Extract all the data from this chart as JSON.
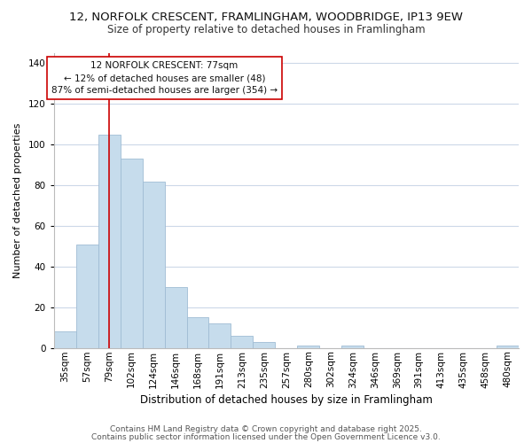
{
  "title": "12, NORFOLK CRESCENT, FRAMLINGHAM, WOODBRIDGE, IP13 9EW",
  "subtitle": "Size of property relative to detached houses in Framlingham",
  "xlabel": "Distribution of detached houses by size in Framlingham",
  "ylabel": "Number of detached properties",
  "bar_color": "#c6dcec",
  "bar_edge_color": "#a0bcd4",
  "categories": [
    "35sqm",
    "57sqm",
    "79sqm",
    "102sqm",
    "124sqm",
    "146sqm",
    "168sqm",
    "191sqm",
    "213sqm",
    "235sqm",
    "257sqm",
    "280sqm",
    "302sqm",
    "324sqm",
    "346sqm",
    "369sqm",
    "391sqm",
    "413sqm",
    "435sqm",
    "458sqm",
    "480sqm"
  ],
  "values": [
    8,
    51,
    105,
    93,
    82,
    30,
    15,
    12,
    6,
    3,
    0,
    1,
    0,
    1,
    0,
    0,
    0,
    0,
    0,
    0,
    1
  ],
  "ylim": [
    0,
    145
  ],
  "yticks": [
    0,
    20,
    40,
    60,
    80,
    100,
    120,
    140
  ],
  "vline_x": 2,
  "vline_color": "#cc0000",
  "annotation_title": "12 NORFOLK CRESCENT: 77sqm",
  "annotation_line1": "← 12% of detached houses are smaller (48)",
  "annotation_line2": "87% of semi-detached houses are larger (354) →",
  "annotation_box_color": "#ffffff",
  "annotation_box_edge": "#cc0000",
  "footer1": "Contains HM Land Registry data © Crown copyright and database right 2025.",
  "footer2": "Contains public sector information licensed under the Open Government Licence v3.0.",
  "background_color": "#ffffff",
  "grid_color": "#ccd8e8",
  "title_fontsize": 9.5,
  "subtitle_fontsize": 8.5,
  "xlabel_fontsize": 8.5,
  "ylabel_fontsize": 8.0,
  "tick_fontsize": 7.5,
  "annotation_fontsize": 7.5,
  "footer_fontsize": 6.5
}
